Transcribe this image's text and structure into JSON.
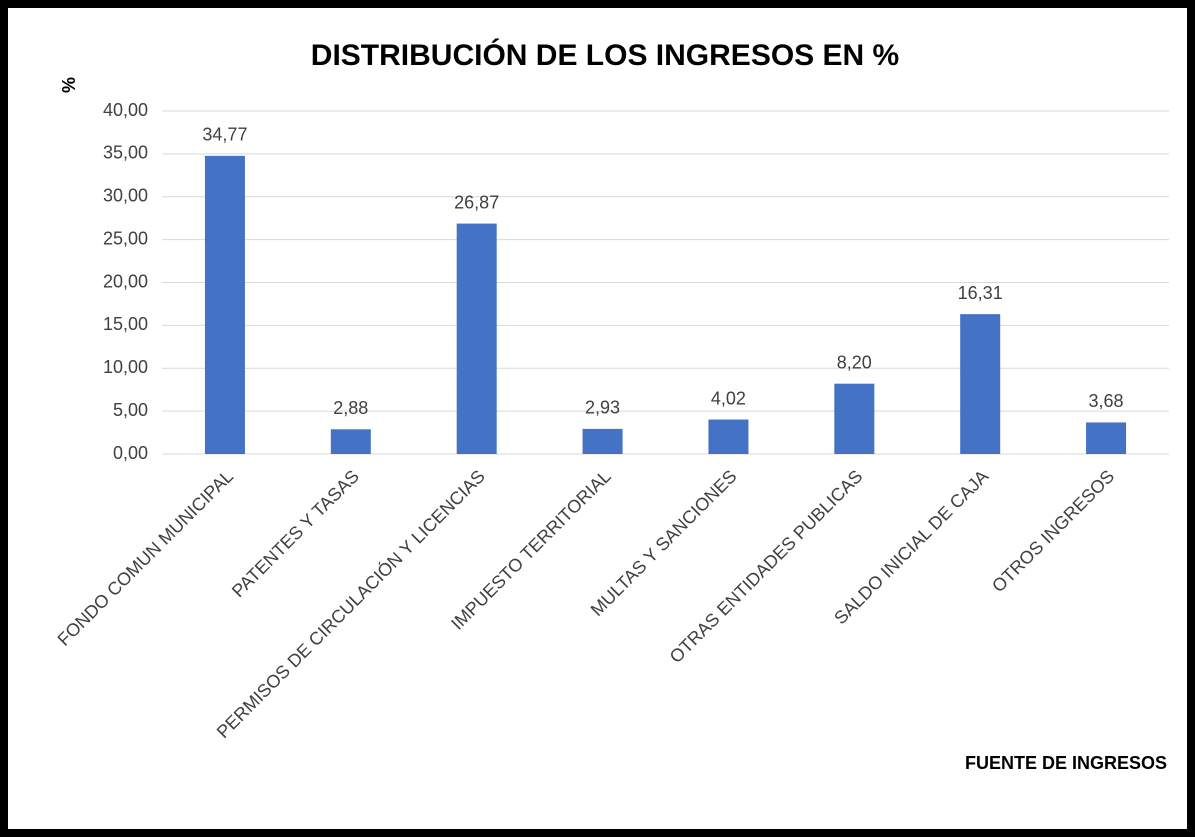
{
  "chart_data": {
    "type": "bar",
    "title": "DISTRIBUCIÓN DE LOS INGRESOS EN %",
    "y_label": "%",
    "x_label": "FUENTE DE INGRESOS",
    "categories": [
      "FONDO COMUN MUNICIPAL",
      "PATENTES Y TASAS",
      "PERMISOS DE CIRCULACIÓN Y LICENCIAS",
      "IMPUESTO TERRITORIAL",
      "MULTAS Y SANCIONES",
      "OTRAS ENTIDADES PUBLICAS",
      "SALDO INICIAL DE CAJA",
      "OTROS INGRESOS"
    ],
    "values": [
      34.77,
      2.88,
      26.87,
      2.93,
      4.02,
      8.2,
      16.31,
      3.68
    ],
    "value_labels": [
      "34,77",
      "2,88",
      "26,87",
      "2,93",
      "4,02",
      "8,20",
      "16,31",
      "3,68"
    ],
    "color": "#4472c4",
    "ylim": [
      0,
      40
    ],
    "yticks": [
      {
        "value": 0,
        "label": "0,00"
      },
      {
        "value": 5,
        "label": "5,00"
      },
      {
        "value": 10,
        "label": "10,00"
      },
      {
        "value": 15,
        "label": "15,00"
      },
      {
        "value": 20,
        "label": "20,00"
      },
      {
        "value": 25,
        "label": "25,00"
      },
      {
        "value": 30,
        "label": "30,00"
      },
      {
        "value": 35,
        "label": "35,00"
      },
      {
        "value": 40,
        "label": "40,00"
      }
    ],
    "grid": true
  }
}
